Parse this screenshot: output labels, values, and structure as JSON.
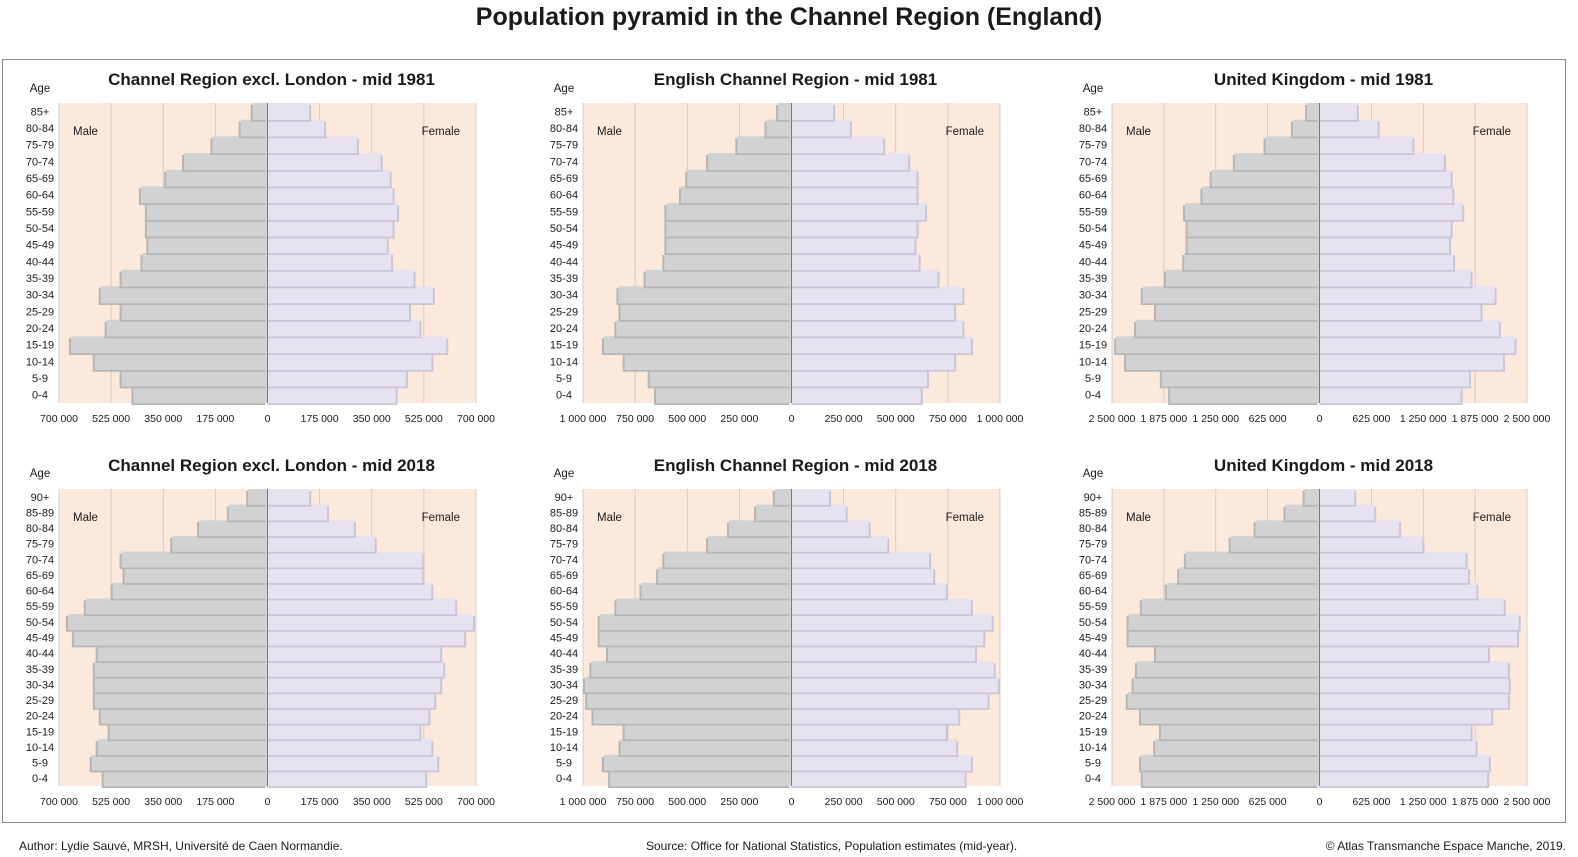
{
  "title": "Population pyramid in the Channel Region (England)",
  "footer": {
    "author": "Author: Lydie Sauvé, MRSH, Université de Caen Normandie.",
    "source": "Source: Office for National Statistics, Population estimates (mid-year).",
    "copyright": "© Atlas Transmanche Espace Manche, 2019."
  },
  "colors": {
    "plot_bg": "#fde9dc",
    "male": "#d2d2d2",
    "female": "#e6e2ef",
    "grid": "#cfc3b8",
    "axis": "#7a7a7a"
  },
  "chart_data": [
    {
      "type": "bar",
      "orientation": "population-pyramid",
      "title": "Channel Region excl. London - mid 1981",
      "ylabel": "Age",
      "left_label": "Male",
      "right_label": "Female",
      "xlim": [
        -700000,
        700000
      ],
      "xticks": [
        -700000,
        -525000,
        -350000,
        -175000,
        0,
        175000,
        350000,
        525000,
        700000
      ],
      "xtick_labels": [
        "700 000",
        "525 000",
        "350 000",
        "175 000",
        "0",
        "175 000",
        "350 000",
        "525 000",
        "700 000"
      ],
      "categories": [
        "0-4",
        "5-9",
        "10-14",
        "15-19",
        "20-24",
        "25-29",
        "30-34",
        "35-39",
        "40-44",
        "45-49",
        "50-54",
        "55-59",
        "60-64",
        "65-69",
        "70-74",
        "75-79",
        "80-84",
        "85+"
      ],
      "series": [
        {
          "name": "Male",
          "values": [
            450000,
            490000,
            580000,
            660000,
            540000,
            490000,
            560000,
            490000,
            420000,
            400000,
            405000,
            405000,
            425000,
            340000,
            280000,
            185000,
            90000,
            50000
          ]
        },
        {
          "name": "Female",
          "values": [
            430000,
            465000,
            550000,
            600000,
            510000,
            475000,
            555000,
            490000,
            415000,
            400000,
            420000,
            435000,
            420000,
            410000,
            380000,
            300000,
            190000,
            140000
          ]
        }
      ]
    },
    {
      "type": "bar",
      "orientation": "population-pyramid",
      "title": "English Channel Region - mid 1981",
      "ylabel": "Age",
      "left_label": "Male",
      "right_label": "Female",
      "xlim": [
        -1000000,
        1000000
      ],
      "xticks": [
        -1000000,
        -750000,
        -500000,
        -250000,
        0,
        250000,
        500000,
        750000,
        1000000
      ],
      "xtick_labels": [
        "1 000 000",
        "750 000",
        "500 000",
        "250 000",
        "0",
        "250 000",
        "500 000",
        "750 000",
        "1 000 000"
      ],
      "categories": [
        "0-4",
        "5-9",
        "10-14",
        "15-19",
        "20-24",
        "25-29",
        "30-34",
        "35-39",
        "40-44",
        "45-49",
        "50-54",
        "55-59",
        "60-64",
        "65-69",
        "70-74",
        "75-79",
        "80-84",
        "85+"
      ],
      "series": [
        {
          "name": "Male",
          "values": [
            650000,
            680000,
            800000,
            900000,
            840000,
            820000,
            830000,
            700000,
            610000,
            600000,
            600000,
            600000,
            530000,
            500000,
            400000,
            260000,
            120000,
            65000
          ]
        },
        {
          "name": "Female",
          "values": [
            620000,
            650000,
            780000,
            860000,
            820000,
            780000,
            820000,
            700000,
            610000,
            590000,
            600000,
            640000,
            600000,
            600000,
            560000,
            440000,
            280000,
            200000
          ]
        }
      ]
    },
    {
      "type": "bar",
      "orientation": "population-pyramid",
      "title": "United Kingdom - mid 1981",
      "ylabel": "Age",
      "left_label": "Male",
      "right_label": "Female",
      "xlim": [
        -2500000,
        2500000
      ],
      "xticks": [
        -2500000,
        -1875000,
        -1250000,
        -625000,
        0,
        625000,
        1250000,
        1875000,
        2500000
      ],
      "xtick_labels": [
        "2 500 000",
        "1 875 000",
        "1 250 000",
        "625 000",
        "0",
        "625 000",
        "1 250 000",
        "1 875 000",
        "2 500 000"
      ],
      "categories": [
        "0-4",
        "5-9",
        "10-14",
        "15-19",
        "20-24",
        "25-29",
        "30-34",
        "35-39",
        "40-44",
        "45-49",
        "50-54",
        "55-59",
        "60-64",
        "65-69",
        "70-74",
        "75-79",
        "80-84",
        "85+"
      ],
      "series": [
        {
          "name": "Male",
          "values": [
            1800000,
            1900000,
            2330000,
            2450000,
            2210000,
            1970000,
            2130000,
            1850000,
            1630000,
            1590000,
            1590000,
            1620000,
            1410000,
            1300000,
            1020000,
            650000,
            320000,
            150000
          ]
        },
        {
          "name": "Female",
          "values": [
            1700000,
            1800000,
            2210000,
            2350000,
            2160000,
            1940000,
            2110000,
            1820000,
            1610000,
            1560000,
            1580000,
            1720000,
            1600000,
            1580000,
            1500000,
            1120000,
            700000,
            450000
          ]
        }
      ]
    },
    {
      "type": "bar",
      "orientation": "population-pyramid",
      "title": "Channel Region excl. London - mid 2018",
      "ylabel": "Age",
      "left_label": "Male",
      "right_label": "Female",
      "xlim": [
        -700000,
        700000
      ],
      "xticks": [
        -700000,
        -525000,
        -350000,
        -175000,
        0,
        175000,
        350000,
        525000,
        700000
      ],
      "xtick_labels": [
        "700 000",
        "525 000",
        "350 000",
        "175 000",
        "0",
        "175 000",
        "350 000",
        "525 000",
        "700 000"
      ],
      "categories": [
        "0-4",
        "5-9",
        "10-14",
        "15-19",
        "20-24",
        "25-29",
        "30-34",
        "35-39",
        "40-44",
        "45-49",
        "50-54",
        "55-59",
        "60-64",
        "65-69",
        "70-74",
        "75-79",
        "80-84",
        "85-89",
        "90+"
      ],
      "series": [
        {
          "name": "Male",
          "values": [
            550000,
            590000,
            570000,
            530000,
            560000,
            580000,
            580000,
            580000,
            570000,
            650000,
            670000,
            610000,
            520000,
            480000,
            490000,
            320000,
            230000,
            130000,
            65000
          ]
        },
        {
          "name": "Female",
          "values": [
            530000,
            570000,
            550000,
            510000,
            540000,
            560000,
            580000,
            590000,
            580000,
            660000,
            690000,
            630000,
            550000,
            520000,
            520000,
            360000,
            290000,
            200000,
            140000
          ]
        }
      ]
    },
    {
      "type": "bar",
      "orientation": "population-pyramid",
      "title": "English Channel Region - mid 2018",
      "ylabel": "Age",
      "left_label": "Male",
      "right_label": "Female",
      "xlim": [
        -1000000,
        1000000
      ],
      "xticks": [
        -1000000,
        -750000,
        -500000,
        -250000,
        0,
        250000,
        500000,
        750000,
        1000000
      ],
      "xtick_labels": [
        "1 000 000",
        "750 000",
        "500 000",
        "250 000",
        "0",
        "250 000",
        "500 000",
        "750 000",
        "1 000 000"
      ],
      "categories": [
        "0-4",
        "5-9",
        "10-14",
        "15-19",
        "20-24",
        "25-29",
        "30-34",
        "35-39",
        "40-44",
        "45-49",
        "50-54",
        "55-59",
        "60-64",
        "65-69",
        "70-74",
        "75-79",
        "80-84",
        "85-89",
        "90+"
      ],
      "series": [
        {
          "name": "Male",
          "values": [
            870000,
            900000,
            820000,
            800000,
            950000,
            980000,
            990000,
            960000,
            880000,
            920000,
            920000,
            840000,
            720000,
            640000,
            610000,
            400000,
            300000,
            170000,
            80000
          ]
        },
        {
          "name": "Female",
          "values": [
            830000,
            860000,
            790000,
            740000,
            800000,
            940000,
            990000,
            970000,
            880000,
            920000,
            960000,
            860000,
            740000,
            680000,
            660000,
            460000,
            370000,
            260000,
            180000
          ]
        }
      ]
    },
    {
      "type": "bar",
      "orientation": "population-pyramid",
      "title": "United Kingdom - mid 2018",
      "ylabel": "Age",
      "left_label": "Male",
      "right_label": "Female",
      "xlim": [
        -2500000,
        2500000
      ],
      "xticks": [
        -2500000,
        -1875000,
        -1250000,
        -625000,
        0,
        625000,
        1250000,
        1875000,
        2500000
      ],
      "xtick_labels": [
        "2 500 000",
        "1 875 000",
        "1 250 000",
        "625 000",
        "0",
        "625 000",
        "1 250 000",
        "1 875 000",
        "2 500 000"
      ],
      "categories": [
        "0-4",
        "5-9",
        "10-14",
        "15-19",
        "20-24",
        "25-29",
        "30-34",
        "35-39",
        "40-44",
        "45-49",
        "50-54",
        "55-59",
        "60-64",
        "65-69",
        "70-74",
        "75-79",
        "80-84",
        "85-89",
        "90+"
      ],
      "series": [
        {
          "name": "Male",
          "values": [
            2130000,
            2150000,
            1980000,
            1910000,
            2150000,
            2310000,
            2240000,
            2200000,
            1970000,
            2300000,
            2300000,
            2140000,
            1840000,
            1690000,
            1610000,
            1070000,
            770000,
            410000,
            180000
          ]
        },
        {
          "name": "Female",
          "values": [
            2020000,
            2040000,
            1880000,
            1820000,
            2070000,
            2270000,
            2280000,
            2270000,
            2030000,
            2380000,
            2400000,
            2220000,
            1890000,
            1790000,
            1760000,
            1240000,
            960000,
            660000,
            420000
          ]
        }
      ]
    }
  ]
}
